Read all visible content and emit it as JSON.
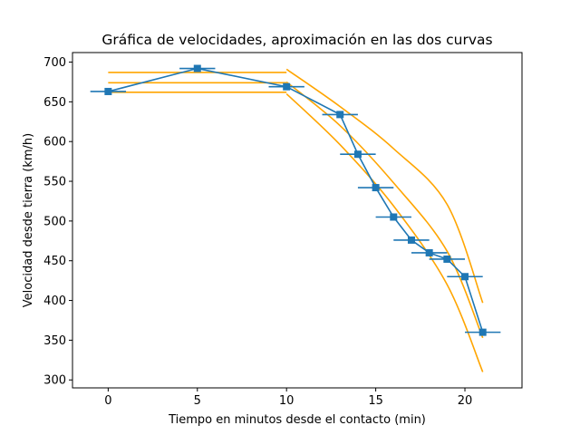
{
  "chart_data": {
    "type": "line",
    "title": "Gráfica de velocidades, aproximación en las dos curvas",
    "xlabel": "Tiempo en minutos desde el contacto (min)",
    "ylabel": "Velocidad desde tierra (km/h)",
    "xlim": [
      -2,
      23.2
    ],
    "ylim": [
      290,
      712
    ],
    "x_ticks": [
      0,
      5,
      10,
      15,
      20
    ],
    "y_ticks": [
      300,
      350,
      400,
      450,
      500,
      550,
      600,
      650,
      700
    ],
    "grid": false,
    "legend": "none",
    "colors": {
      "data": "#1f77b4",
      "fit": "#ffa500"
    },
    "series": [
      {
        "style": "line-with-xerror",
        "x": [
          0,
          5,
          10,
          13,
          14,
          15,
          16,
          17,
          18,
          19,
          20,
          21
        ],
        "y": [
          663,
          692,
          669,
          634,
          584,
          542,
          505,
          476,
          460,
          452,
          430,
          360
        ],
        "xerr": 1
      },
      {
        "style": "fit",
        "x": [
          0,
          10
        ],
        "y": [
          687,
          687
        ]
      },
      {
        "style": "fit",
        "x": [
          0,
          10
        ],
        "y": [
          674,
          674
        ]
      },
      {
        "style": "fit",
        "x": [
          0,
          10
        ],
        "y": [
          662,
          662
        ]
      },
      {
        "style": "fit",
        "x": [
          10,
          13,
          16,
          19,
          21
        ],
        "y": [
          691,
          644,
          591,
          521,
          397
        ]
      },
      {
        "style": "fit",
        "x": [
          10,
          13,
          16,
          19,
          21
        ],
        "y": [
          675,
          620,
          548,
          462,
          353
        ]
      },
      {
        "style": "fit",
        "x": [
          10,
          13,
          16,
          19,
          21
        ],
        "y": [
          660,
          596,
          519,
          420,
          310
        ]
      }
    ]
  }
}
